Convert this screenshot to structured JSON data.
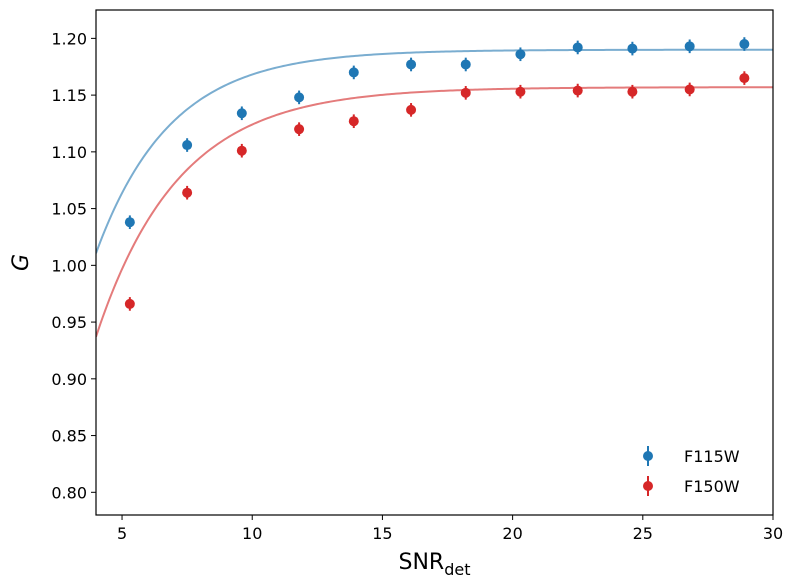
{
  "chart_data": {
    "type": "scatter",
    "title": "",
    "xlabel_main": "SNR",
    "xlabel_sub": "det",
    "ylabel": "G",
    "xlim": [
      4,
      30
    ],
    "ylim": [
      0.78,
      1.225
    ],
    "xticks": [
      5,
      10,
      15,
      20,
      25,
      30
    ],
    "yticks": [
      0.8,
      0.85,
      0.9,
      0.95,
      1.0,
      1.05,
      1.1,
      1.15,
      1.2
    ],
    "grid": false,
    "legend_position": "lower-right",
    "series": [
      {
        "name": "F115W",
        "color": "#1f77b4",
        "fit_color": "#7aadd0",
        "x": [
          5.3,
          7.5,
          9.6,
          11.8,
          13.9,
          16.1,
          18.2,
          20.3,
          22.5,
          24.6,
          26.8,
          28.9
        ],
        "y": [
          1.038,
          1.106,
          1.134,
          1.148,
          1.17,
          1.177,
          1.177,
          1.186,
          1.192,
          1.191,
          1.193,
          1.195
        ],
        "yerr": [
          0.006,
          0.006,
          0.006,
          0.006,
          0.006,
          0.006,
          0.006,
          0.006,
          0.006,
          0.006,
          0.006,
          0.006
        ],
        "fit": {
          "model": "a - b*exp(-x/c)",
          "a": 1.19,
          "b": 0.73,
          "c": 2.85
        }
      },
      {
        "name": "F150W",
        "color": "#d62728",
        "fit_color": "#e47b7b",
        "x": [
          5.3,
          7.5,
          9.6,
          11.8,
          13.9,
          16.1,
          18.2,
          20.3,
          22.5,
          24.6,
          26.8,
          28.9
        ],
        "y": [
          0.966,
          1.064,
          1.101,
          1.12,
          1.127,
          1.137,
          1.152,
          1.153,
          1.154,
          1.153,
          1.155,
          1.165
        ],
        "yerr": [
          0.006,
          0.006,
          0.006,
          0.006,
          0.006,
          0.006,
          0.006,
          0.006,
          0.006,
          0.006,
          0.006,
          0.006
        ],
        "fit": {
          "model": "a - b*exp(-x/c)",
          "a": 1.157,
          "b": 0.78,
          "c": 3.16
        }
      }
    ]
  }
}
